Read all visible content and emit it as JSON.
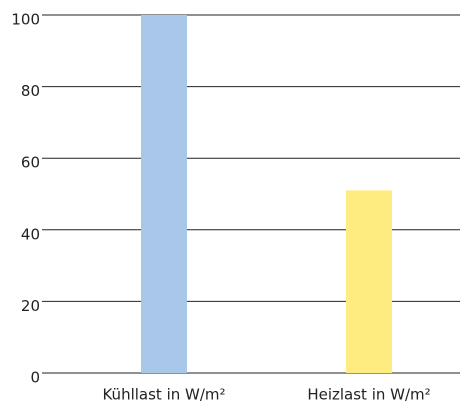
{
  "chart_data": {
    "type": "bar",
    "categories": [
      "Kühllast in W/m²",
      "Heizlast in W/m²"
    ],
    "values": [
      100,
      51
    ],
    "colors": [
      "#a9c7e8",
      "#ffec80"
    ],
    "ylim": [
      0,
      100
    ],
    "yticks": [
      0,
      20,
      40,
      60,
      80,
      100
    ],
    "grid": true
  }
}
